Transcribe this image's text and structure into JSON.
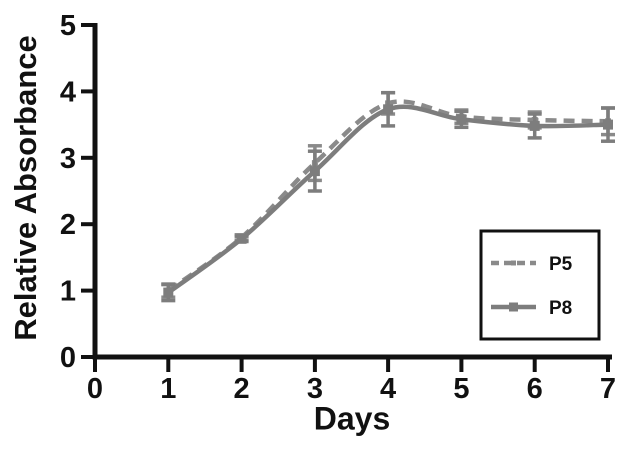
{
  "figure": {
    "background": "#ffffff",
    "axis_color": "#111111",
    "tick_label_color": "#111111"
  },
  "chart_data": {
    "type": "line",
    "title": "",
    "xlabel": "Days",
    "ylabel": "Relative Absorbance",
    "xlim": [
      0,
      7
    ],
    "ylim": [
      0,
      5
    ],
    "xticks": [
      0,
      1,
      2,
      3,
      4,
      5,
      6,
      7
    ],
    "yticks": [
      0,
      1,
      2,
      3,
      4,
      5
    ],
    "grid": false,
    "legend_position": "lower-right",
    "x": [
      1,
      2,
      3,
      4,
      5,
      6,
      7
    ],
    "series": [
      {
        "name": "P5",
        "style": "dashed",
        "marker": "small-square",
        "color": "#8a8a8a",
        "values": [
          1.0,
          1.8,
          2.92,
          3.82,
          3.62,
          3.57,
          3.55
        ],
        "errors": [
          0.1,
          0.04,
          0.26,
          0.16,
          0.1,
          0.12,
          0.2
        ]
      },
      {
        "name": "P8",
        "style": "solid",
        "marker": "square",
        "color": "#7d7d7d",
        "values": [
          0.97,
          1.78,
          2.8,
          3.73,
          3.58,
          3.48,
          3.5
        ],
        "errors": [
          0.12,
          0.04,
          0.3,
          0.25,
          0.12,
          0.18,
          0.25
        ]
      }
    ]
  }
}
